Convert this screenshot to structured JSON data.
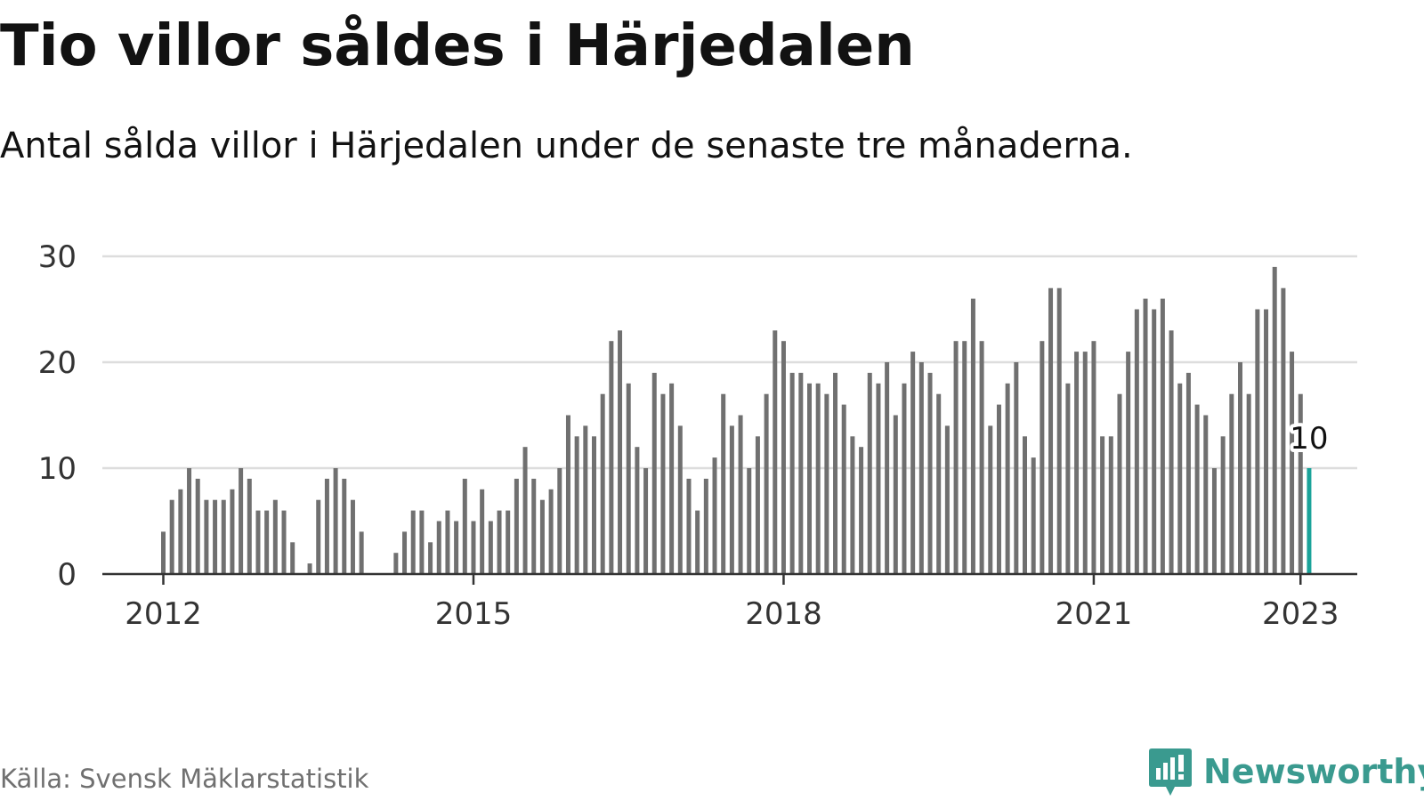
{
  "title": "Tio villor såldes i Härjedalen",
  "subtitle": "Antal sålda villor i Härjedalen under de senaste tre månaderna.",
  "source": "Källa: Svensk Mäklarstatistik",
  "brand": {
    "name": "Newsworthy",
    "logo_icon": "newsworthy-logo-icon",
    "color": "#3a9a8f"
  },
  "colors": {
    "bar": "#707070",
    "highlight": "#1aa39a",
    "grid": "#dddddd",
    "axis": "#333333"
  },
  "chart_data": {
    "type": "bar",
    "title": "Tio villor såldes i Härjedalen",
    "subtitle": "Antal sålda villor i Härjedalen under de senaste tre månaderna.",
    "xlabel": "",
    "ylabel": "",
    "x_start": "2012-01",
    "x_ticks": [
      "2012",
      "2015",
      "2018",
      "2021",
      "2023"
    ],
    "y_ticks": [
      0,
      10,
      20,
      30
    ],
    "ylim": [
      0,
      30
    ],
    "grid": true,
    "highlight_label": "10",
    "values": [
      4,
      7,
      8,
      10,
      9,
      7,
      7,
      7,
      8,
      10,
      9,
      6,
      6,
      7,
      6,
      3,
      0,
      1,
      7,
      9,
      10,
      9,
      7,
      4,
      0,
      0,
      0,
      2,
      4,
      6,
      6,
      3,
      5,
      6,
      5,
      9,
      5,
      8,
      5,
      6,
      6,
      9,
      12,
      9,
      7,
      8,
      10,
      15,
      13,
      14,
      13,
      17,
      22,
      23,
      18,
      12,
      10,
      19,
      17,
      18,
      14,
      9,
      6,
      9,
      11,
      17,
      14,
      15,
      10,
      13,
      17,
      23,
      22,
      19,
      19,
      18,
      18,
      17,
      19,
      16,
      13,
      12,
      19,
      18,
      20,
      15,
      18,
      21,
      20,
      19,
      17,
      14,
      22,
      22,
      26,
      22,
      14,
      16,
      18,
      20,
      13,
      11,
      22,
      27,
      27,
      18,
      21,
      21,
      22,
      13,
      13,
      17,
      21,
      25,
      26,
      25,
      26,
      23,
      18,
      19,
      16,
      15,
      10,
      13,
      17,
      20,
      17,
      25,
      25,
      29,
      27,
      21,
      17,
      10
    ]
  }
}
